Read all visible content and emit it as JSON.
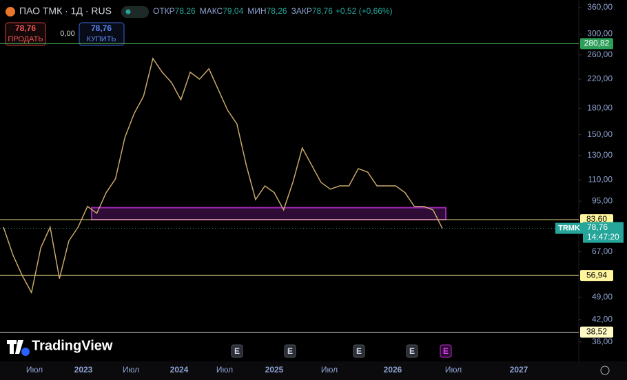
{
  "header": {
    "symbol": "ПАО ТМК · 1Д · RUS",
    "ohlc": [
      {
        "label": "ОТКР",
        "value": "78,26"
      },
      {
        "label": "МАКС",
        "value": "79,04"
      },
      {
        "label": "МИН",
        "value": "78,26"
      },
      {
        "label": "ЗАКР",
        "value": "78,76"
      }
    ],
    "change": "+0,52 (+0,66%)"
  },
  "trade_buttons": {
    "sell_price": "78,76",
    "sell_label": "ПРОДАТЬ",
    "spread": "0,00",
    "buy_price": "78,76",
    "buy_label": "КУПИТЬ"
  },
  "logo": "TradingView",
  "chart_data": {
    "type": "line",
    "log_scale": true,
    "color": "#c8a86a",
    "ylim": [
      31.5,
      379.3
    ],
    "yticks": [
      {
        "value": 360,
        "label": "360,00"
      },
      {
        "value": 300,
        "label": "300,00"
      },
      {
        "value": 260,
        "label": "260,00"
      },
      {
        "value": 220,
        "label": "220,00"
      },
      {
        "value": 180,
        "label": "180,00"
      },
      {
        "value": 150,
        "label": "150,00"
      },
      {
        "value": 130,
        "label": "130,00"
      },
      {
        "value": 110,
        "label": "110,00"
      },
      {
        "value": 95,
        "label": "95,00"
      },
      {
        "value": 67,
        "label": "67,00"
      },
      {
        "value": 49,
        "label": "49,00"
      },
      {
        "value": 42,
        "label": "42,00"
      },
      {
        "value": 36,
        "label": "36,00"
      }
    ],
    "x_labels": [
      "Июл",
      "2023",
      "Июл",
      "2024",
      "Июл",
      "2025",
      "Июл",
      "2026",
      "Июл",
      "2027"
    ],
    "values": [
      79.4,
      65.7,
      57.0,
      50.6,
      68.9,
      79.4,
      55.7,
      72.2,
      79.4,
      91.6,
      87.3,
      100.7,
      110.7,
      147.1,
      173.6,
      195.4,
      253.5,
      230.7,
      214.8,
      190.8,
      230.7,
      219.9,
      236.2,
      204.9,
      177.7,
      161.7,
      121.7,
      96.0,
      105.5,
      100.7,
      89.4,
      108.1,
      137.0,
      121.7,
      108.1,
      103.1,
      105.5,
      105.5,
      118.8,
      116.0,
      105.5,
      105.5,
      105.5,
      100.7,
      91.6,
      91.6,
      89.4,
      78.76
    ],
    "levels": [
      {
        "value": 280.82,
        "label": "280,82",
        "color": "#4caf50",
        "label_color": "#2e9e5b"
      },
      {
        "value": 83.6,
        "label": "83,60",
        "color": "#f5e88a",
        "label_color": "#fff59d"
      },
      {
        "value": 56.94,
        "label": "56,94",
        "color": "#f5e88a",
        "label_color": "#fff59d"
      },
      {
        "value": 38.52,
        "label": "38,52",
        "color": "#e0e0e0",
        "label_color": "#fff9c4"
      }
    ],
    "zone": {
      "top": 90.8,
      "bottom": 83.6,
      "color": "#9c27b0"
    },
    "last_price": {
      "symbol": "TRMK",
      "value": 78.76,
      "label": "78,76",
      "countdown": "14:47:20",
      "color": "#26a69a"
    },
    "event_label": "E"
  }
}
